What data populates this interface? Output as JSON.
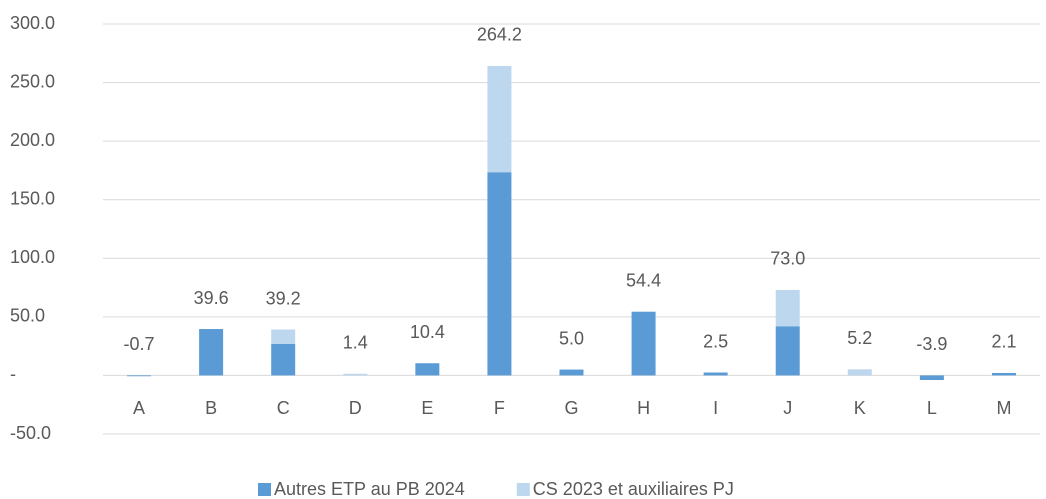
{
  "chart_data": {
    "type": "stacked_bar",
    "categories": [
      "A",
      "B",
      "C",
      "D",
      "E",
      "F",
      "G",
      "H",
      "I",
      "J",
      "K",
      "L",
      "M"
    ],
    "series": [
      {
        "name": "Autres ETP au PB 2024",
        "color": "#5b9bd5",
        "values": [
          -0.7,
          39.6,
          27.0,
          0,
          10.4,
          173.5,
          5.0,
          54.4,
          2.5,
          42.0,
          0,
          -3.9,
          2.1
        ]
      },
      {
        "name": "CS 2023 et auxiliaires PJ",
        "color": "#bdd7ee",
        "values": [
          0,
          0,
          12.2,
          1.4,
          0,
          90.7,
          0,
          0,
          0,
          31.0,
          5.2,
          0,
          0
        ]
      }
    ],
    "totals": [
      -0.7,
      39.6,
      39.2,
      1.4,
      10.4,
      264.2,
      5.0,
      54.4,
      2.5,
      73.0,
      5.2,
      -3.9,
      2.1
    ],
    "total_labels": [
      "-0.7",
      "39.6",
      "39.2",
      "1.4",
      "10.4",
      "264.2",
      "5.0",
      "54.4",
      "2.5",
      "73.0",
      "5.2",
      "-3.9",
      "2.1"
    ],
    "ylim": [
      -50,
      300
    ],
    "yticks": [
      {
        "value": -50,
        "label": "-50.0"
      },
      {
        "value": 0,
        "label": "-"
      },
      {
        "value": 50,
        "label": "50.0"
      },
      {
        "value": 100,
        "label": "100.0"
      },
      {
        "value": 150,
        "label": "150.0"
      },
      {
        "value": 200,
        "label": "200.0"
      },
      {
        "value": 250,
        "label": "250.0"
      },
      {
        "value": 300,
        "label": "300.0"
      }
    ],
    "grid": true,
    "legend": "bottom"
  }
}
